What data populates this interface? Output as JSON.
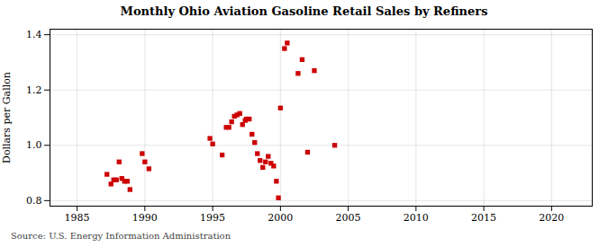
{
  "chart_data": {
    "type": "scatter",
    "title": "Monthly Ohio Aviation Gasoline Retail Sales by Refiners",
    "ylabel": "Dollars per Gallon",
    "annotations": [
      "Source: U.S. Energy Information Administration"
    ],
    "color": "#cc0000",
    "marker": "square",
    "grid": true,
    "xlim": [
      1983,
      2023
    ],
    "ylim": [
      0.78,
      1.42
    ],
    "xticks": [
      1985,
      1990,
      1995,
      2000,
      2005,
      2010,
      2015,
      2020
    ],
    "yticks": [
      0.8,
      {
        "value": 1,
        "label": "1.0"
      },
      1.2,
      1.4
    ],
    "x": [
      1987.2,
      1987.5,
      1987.7,
      1987.9,
      1988.1,
      1988.3,
      1988.5,
      1988.7,
      1988.9,
      1989.8,
      1990.0,
      1990.3,
      1994.8,
      1995.0,
      1995.7,
      1996.0,
      1996.2,
      1996.4,
      1996.6,
      1996.8,
      1997.0,
      1997.2,
      1997.4,
      1997.5,
      1997.7,
      1997.9,
      1998.1,
      1998.3,
      1998.5,
      1998.7,
      1998.9,
      1999.1,
      1999.3,
      1999.5,
      1999.7,
      1999.85,
      2000.0,
      2000.3,
      2000.5,
      2001.3,
      2001.6,
      2002.0,
      2002.5,
      2004.0
    ],
    "values": [
      0.895,
      0.86,
      0.875,
      0.875,
      0.94,
      0.88,
      0.87,
      0.87,
      0.84,
      0.97,
      0.94,
      0.915,
      1.025,
      1.005,
      0.965,
      1.065,
      1.065,
      1.085,
      1.105,
      1.11,
      1.115,
      1.075,
      1.09,
      1.095,
      1.095,
      1.04,
      1.01,
      0.97,
      0.945,
      0.92,
      0.94,
      0.96,
      0.935,
      0.925,
      0.87,
      0.81,
      1.135,
      1.35,
      1.37,
      1.26,
      1.31,
      0.975,
      1.27,
      1.0
    ]
  }
}
